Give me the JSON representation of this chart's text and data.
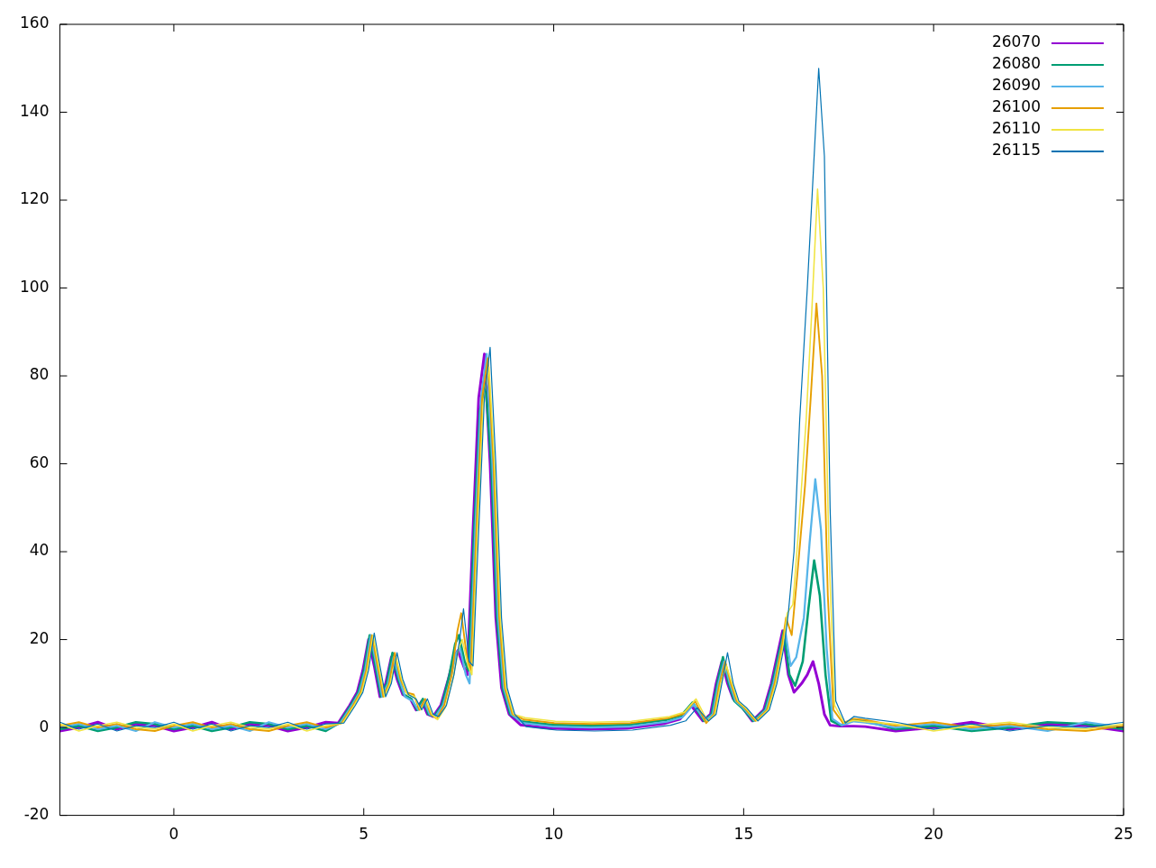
{
  "chart_data": {
    "type": "line",
    "series": [
      {
        "name": "26070",
        "color": "#9400d3",
        "x": [
          -3,
          -2.5,
          -2,
          -1.5,
          -1,
          -0.5,
          0,
          0.5,
          1,
          1.5,
          2,
          2.5,
          3,
          3.5,
          4,
          4.325,
          4.625,
          4.825,
          4.975,
          5.125,
          5.275,
          5.425,
          5.575,
          5.725,
          5.875,
          6.025,
          6.225,
          6.375,
          6.525,
          6.675,
          6.825,
          7.025,
          7.225,
          7.375,
          7.475,
          7.625,
          7.725,
          7.875,
          8.025,
          8.175,
          8.325,
          8.475,
          8.625,
          8.825,
          9.125,
          9.525,
          9.925,
          10.925,
          11.925,
          12.925,
          13.325,
          13.625,
          13.925,
          14.125,
          14.275,
          14.425,
          14.575,
          14.725,
          14.925,
          15.225,
          15.525,
          15.725,
          15.925,
          16.025,
          16.175,
          16.325,
          16.525,
          16.675,
          16.825,
          16.975,
          17.125,
          17.275,
          17.525,
          17.9,
          18.2,
          19,
          20,
          21,
          22,
          23,
          24,
          25
        ],
        "values": [
          -0.8,
          0,
          1.2,
          -0.4,
          0.8,
          0.4,
          -0.8,
          0,
          1.2,
          -0.4,
          0.8,
          0.4,
          -0.8,
          0,
          1.2,
          1,
          5,
          8,
          13,
          20,
          14,
          7,
          10,
          16,
          11,
          7.5,
          6.5,
          4,
          6,
          3,
          2.5,
          5,
          11,
          16,
          17.5,
          14,
          12,
          45,
          75,
          85,
          60,
          25,
          9,
          3,
          0.6,
          0.2,
          -0.2,
          -0.4,
          -0.2,
          0.9,
          1.9,
          4.9,
          1.5,
          3,
          10,
          15,
          10,
          6.5,
          5,
          1.5,
          4,
          10,
          18,
          22,
          12,
          8,
          10,
          12,
          15,
          10,
          3,
          0.5,
          0.3,
          0.3,
          0.2,
          -0.8,
          0,
          1.2,
          -0.4,
          0.8,
          0.4,
          -0.8
        ]
      },
      {
        "name": "26080",
        "color": "#009e73",
        "x": [
          -3,
          -2.5,
          -2,
          -1.5,
          -1,
          -0.5,
          0,
          0.5,
          1,
          1.5,
          2,
          2.5,
          3,
          3.5,
          4,
          4.355,
          4.655,
          4.855,
          5.005,
          5.155,
          5.305,
          5.455,
          5.605,
          5.755,
          5.905,
          6.055,
          6.255,
          6.405,
          6.555,
          6.705,
          6.855,
          7.055,
          7.255,
          7.405,
          7.505,
          7.655,
          7.755,
          7.905,
          8.055,
          8.205,
          8.355,
          8.505,
          8.655,
          8.855,
          9.155,
          9.555,
          9.955,
          10.955,
          11.955,
          12.955,
          13.355,
          13.655,
          13.955,
          14.155,
          14.305,
          14.455,
          14.605,
          14.755,
          14.955,
          15.255,
          15.555,
          15.755,
          15.955,
          16.055,
          16.205,
          16.355,
          16.555,
          16.705,
          16.855,
          17.005,
          17.155,
          17.305,
          17.555,
          17.9,
          18.2,
          19,
          20,
          21,
          22,
          23,
          24,
          25
        ],
        "values": [
          -0.4,
          0.4,
          -0.8,
          0,
          1.2,
          0.8,
          -0.4,
          0.4,
          -0.8,
          0,
          1.2,
          0.8,
          -0.4,
          0.4,
          -0.8,
          1,
          5,
          8,
          13,
          21,
          14,
          7,
          10,
          17,
          11,
          7.5,
          6.5,
          4,
          6.5,
          3,
          2.5,
          5,
          12,
          19,
          21,
          15,
          13,
          45,
          72,
          78,
          60,
          25,
          9,
          3,
          1.4,
          1.0,
          0.6,
          0.4,
          0.6,
          1.7,
          2.7,
          5.7,
          1.5,
          3,
          10,
          16,
          10,
          6,
          4.5,
          1.5,
          4,
          10,
          18,
          22,
          12,
          9.5,
          15,
          27,
          38,
          30,
          12,
          1.5,
          0.5,
          1.8,
          1.5,
          -0.4,
          0.4,
          -0.8,
          0,
          1.2,
          0.8,
          -0.4
        ]
      },
      {
        "name": "26090",
        "color": "#56b4e9",
        "x": [
          -3,
          -2.5,
          -2,
          -1.5,
          -1,
          -0.5,
          0,
          0.5,
          1,
          1.5,
          2,
          2.5,
          3,
          3.5,
          4,
          4.385,
          4.685,
          4.885,
          5.035,
          5.185,
          5.335,
          5.485,
          5.635,
          5.785,
          5.935,
          6.085,
          6.285,
          6.435,
          6.585,
          6.735,
          6.885,
          7.085,
          7.285,
          7.435,
          7.535,
          7.685,
          7.785,
          7.935,
          8.085,
          8.235,
          8.385,
          8.535,
          8.685,
          8.885,
          9.185,
          9.585,
          9.985,
          10.985,
          11.985,
          12.985,
          13.385,
          13.685,
          13.985,
          14.185,
          14.335,
          14.485,
          14.635,
          14.785,
          14.985,
          15.285,
          15.585,
          15.785,
          15.985,
          16.085,
          16.235,
          16.385,
          16.585,
          16.735,
          16.885,
          17.035,
          17.185,
          17.335,
          17.585,
          17.9,
          18.2,
          19,
          20,
          21,
          22,
          23,
          24,
          25
        ],
        "values": [
          0,
          0.8,
          -0.4,
          0.4,
          -0.8,
          1.2,
          0,
          0.8,
          -0.4,
          0.4,
          -0.8,
          1.2,
          0,
          0.8,
          -0.4,
          1,
          5,
          8,
          13,
          21,
          14,
          7,
          10,
          16,
          11,
          7,
          6,
          4,
          6,
          3,
          2.5,
          5,
          11,
          17,
          18,
          12,
          10,
          45,
          75,
          85,
          60,
          25,
          9,
          3,
          1.0,
          0.6,
          0.2,
          0,
          0.2,
          1.3,
          2.3,
          5.3,
          1.5,
          3,
          10,
          15,
          10,
          6,
          4.5,
          1.5,
          4,
          10,
          18,
          22.5,
          14,
          16,
          25,
          42,
          56.5,
          45,
          18,
          2,
          0.5,
          1.4,
          1.1,
          0,
          0.8,
          -0.4,
          0.4,
          -0.8,
          1.2,
          0
        ]
      },
      {
        "name": "26100",
        "color": "#e69f00",
        "x": [
          -3,
          -2.5,
          -2,
          -1.5,
          -1,
          -0.5,
          0,
          0.5,
          1,
          1.5,
          2,
          2.5,
          3,
          3.5,
          4,
          4.415,
          4.715,
          4.915,
          5.065,
          5.215,
          5.365,
          5.515,
          5.665,
          5.815,
          5.965,
          6.115,
          6.315,
          6.465,
          6.615,
          6.765,
          6.915,
          7.115,
          7.315,
          7.465,
          7.565,
          7.715,
          7.815,
          7.965,
          8.115,
          8.265,
          8.415,
          8.565,
          8.715,
          8.915,
          9.215,
          9.615,
          10.015,
          11.015,
          12.015,
          13.015,
          13.415,
          13.715,
          14.015,
          14.215,
          14.365,
          14.515,
          14.665,
          14.815,
          15.015,
          15.315,
          15.615,
          15.815,
          16.015,
          16.115,
          16.265,
          16.415,
          16.615,
          16.765,
          16.915,
          17.065,
          17.215,
          17.365,
          17.615,
          17.9,
          18.2,
          19,
          20,
          21,
          22,
          23,
          24,
          25
        ],
        "values": [
          0.4,
          1.2,
          0,
          0.8,
          -0.4,
          -0.8,
          0.4,
          1.2,
          0,
          0.8,
          -0.4,
          -0.8,
          0.4,
          1.2,
          0,
          1,
          5,
          8,
          13,
          21,
          14,
          7,
          10,
          17,
          11,
          8,
          7.5,
          4,
          6.5,
          3,
          2,
          5,
          12,
          22,
          26,
          16,
          13,
          45,
          75,
          84,
          60,
          25,
          9,
          3,
          1.8,
          1.4,
          1.0,
          0.8,
          1.0,
          2.1,
          3.1,
          6.1,
          1,
          3,
          10,
          15,
          10,
          6,
          4.5,
          1.5,
          4,
          10,
          19,
          25,
          21,
          35,
          55,
          75,
          96.5,
          80,
          30,
          4,
          1,
          2.0,
          1.7,
          0.4,
          1.2,
          0,
          0.8,
          -0.4,
          -0.8,
          0.4
        ]
      },
      {
        "name": "26110",
        "color": "#f0e442",
        "x": [
          -3,
          -2.5,
          -2,
          -1.5,
          -1,
          -0.5,
          0,
          0.5,
          1,
          1.5,
          2,
          2.5,
          3,
          3.5,
          4,
          4.445,
          4.745,
          4.945,
          5.095,
          5.245,
          5.395,
          5.545,
          5.695,
          5.845,
          5.995,
          6.145,
          6.345,
          6.495,
          6.645,
          6.795,
          6.945,
          7.145,
          7.345,
          7.495,
          7.595,
          7.745,
          7.845,
          7.995,
          8.145,
          8.295,
          8.445,
          8.595,
          8.745,
          8.945,
          9.245,
          9.645,
          10.045,
          11.045,
          12.045,
          13.045,
          13.445,
          13.745,
          14.045,
          14.245,
          14.395,
          14.545,
          14.695,
          14.845,
          15.045,
          15.345,
          15.645,
          15.845,
          16.045,
          16.145,
          16.295,
          16.445,
          16.645,
          16.795,
          16.945,
          17.095,
          17.245,
          17.395,
          17.645,
          17.9,
          18.2,
          19,
          20,
          21,
          22,
          23,
          24,
          25
        ],
        "values": [
          0.8,
          -0.8,
          0.4,
          1.2,
          0,
          -0.4,
          0.8,
          -0.8,
          0.4,
          1.2,
          0,
          -0.4,
          0.8,
          -0.8,
          0.4,
          1,
          5,
          8,
          13,
          21,
          14,
          7,
          10,
          16,
          11,
          7.5,
          7,
          4,
          6,
          3,
          1.8,
          4.5,
          11,
          18,
          20,
          14,
          12,
          45,
          74,
          82,
          60,
          25,
          9,
          3,
          2.2,
          1.8,
          1.4,
          1.2,
          1.4,
          2.5,
          3.5,
          6.5,
          1.5,
          3,
          10,
          14,
          10,
          6,
          4.5,
          1.5,
          4,
          10,
          19,
          26,
          28,
          45,
          70,
          95,
          122.5,
          100,
          40,
          5,
          1,
          1.6,
          1.3,
          0.8,
          -0.8,
          0.4,
          1.2,
          0,
          -0.4,
          0.8
        ]
      },
      {
        "name": "26115",
        "color": "#0072b2",
        "x": [
          -3,
          -2.5,
          -2,
          -1.5,
          -1,
          -0.5,
          0,
          0.5,
          1,
          1.5,
          2,
          2.5,
          3,
          3.5,
          4,
          4.475,
          4.775,
          4.975,
          5.125,
          5.275,
          5.425,
          5.575,
          5.725,
          5.875,
          6.025,
          6.175,
          6.375,
          6.525,
          6.675,
          6.825,
          6.975,
          7.175,
          7.375,
          7.525,
          7.625,
          7.775,
          7.875,
          8.025,
          8.175,
          8.325,
          8.475,
          8.625,
          8.775,
          8.975,
          9.275,
          9.675,
          10.075,
          11.075,
          12.075,
          13.075,
          13.475,
          13.775,
          14.075,
          14.275,
          14.425,
          14.575,
          14.725,
          14.875,
          15.075,
          15.375,
          15.675,
          15.875,
          16.075,
          16.175,
          16.325,
          16.475,
          16.675,
          16.825,
          16.975,
          17.125,
          17.275,
          17.425,
          17.675,
          17.9,
          18.2,
          19,
          20,
          21,
          22,
          23,
          24,
          25
        ],
        "values": [
          1.2,
          -0.4,
          0.8,
          -0.8,
          0.4,
          0,
          1.2,
          -0.4,
          0.8,
          -0.8,
          0.4,
          0,
          1.2,
          -0.4,
          0.8,
          1,
          5,
          8,
          13,
          21.5,
          14,
          7,
          10,
          17,
          11,
          7.5,
          6.5,
          4,
          6.5,
          3,
          2.5,
          5,
          12,
          20,
          27,
          15,
          14,
          45,
          75,
          86.5,
          60,
          25,
          9,
          3,
          0.2,
          -0.2,
          -0.6,
          -0.8,
          -0.6,
          0.5,
          1.5,
          4.5,
          1.5,
          3,
          10,
          17,
          10,
          6,
          4.5,
          1.5,
          4,
          10,
          19,
          26,
          40,
          70,
          100,
          125,
          150,
          130,
          50,
          6,
          1,
          2.5,
          2.1,
          1.2,
          -0.4,
          0.8,
          -0.8,
          0.4,
          0,
          1.2
        ]
      }
    ],
    "xlim": [
      -3,
      25
    ],
    "xticks": [
      0,
      5,
      10,
      15,
      20,
      25
    ],
    "ylim": [
      -20,
      160
    ],
    "yticks": [
      -20,
      0,
      20,
      40,
      60,
      80,
      100,
      120,
      140,
      160
    ],
    "grid": false,
    "legend": "top right",
    "marker": "none",
    "line_style": "solid"
  }
}
